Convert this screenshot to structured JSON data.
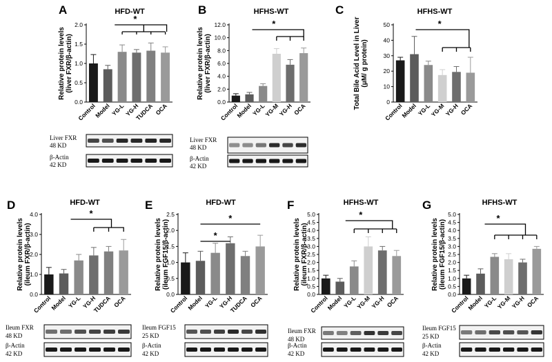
{
  "colors": {
    "control": "#1a1a1a",
    "model": "#5c5c5c",
    "yg_l": "#8a8a8a",
    "yg_m": "#cfcfcf",
    "yg_h": "#6e6e6e",
    "tudca": "#808080",
    "ocs": "#9a9a9a"
  },
  "significance_mark": "*",
  "chart_data": [
    {
      "panel": "A",
      "type": "bar",
      "title": "HFD-WT",
      "ylabel": [
        "Relative protein levels",
        "(liver FXR/β-actin)"
      ],
      "categories": [
        "Control",
        "Model",
        "YG-L",
        "YG-H",
        "TUDCA",
        "OCA"
      ],
      "values": [
        1.0,
        0.85,
        1.3,
        1.28,
        1.33,
        1.28
      ],
      "errors": [
        0.23,
        0.1,
        0.18,
        0.08,
        0.2,
        0.15
      ],
      "ylim": [
        0,
        2.0
      ],
      "yticks": [
        "0.0",
        "0.5",
        "1.0",
        "1.5",
        "2.0"
      ],
      "blot": [
        {
          "label": [
            "Liver FXR",
            "48 KD"
          ]
        },
        {
          "label": [
            "β-Actin",
            "42 KD"
          ]
        }
      ]
    },
    {
      "panel": "B",
      "type": "bar",
      "title": "HFHS-WT",
      "ylabel": [
        "Relative protein levels",
        "(liver FXR/β-actin)"
      ],
      "categories": [
        "Control",
        "Model",
        "YG-L",
        "YG-M",
        "YG-H",
        "OCA"
      ],
      "values": [
        1.0,
        1.2,
        2.5,
        7.5,
        5.8,
        7.6
      ],
      "errors": [
        0.3,
        0.3,
        0.35,
        0.8,
        0.8,
        0.8
      ],
      "ylim": [
        0,
        12.0
      ],
      "yticks": [
        "0.0",
        "2.0",
        "4.0",
        "6.0",
        "8.0",
        "10.0",
        "12.0"
      ],
      "blot": [
        {
          "label": [
            "Liver FXR",
            "48 KD"
          ]
        },
        {
          "label": [
            "β-Actin",
            "42 KD"
          ]
        }
      ]
    },
    {
      "panel": "C",
      "type": "bar",
      "title": "HFHS-WT",
      "ylabel": [
        "Total Bile Acid Level in Liver",
        "(μM/ g protein)"
      ],
      "categories": [
        "Control",
        "Model",
        "YG-L",
        "YG-M",
        "YG-H",
        "OCA"
      ],
      "values": [
        27,
        31,
        24,
        17.5,
        19.5,
        19
      ],
      "errors": [
        2,
        11.5,
        2.5,
        3.5,
        3.5,
        10
      ],
      "ylim": [
        0,
        50
      ],
      "yticks": [
        "0",
        "10",
        "20",
        "30",
        "40",
        "50"
      ],
      "blot": []
    },
    {
      "panel": "D",
      "type": "bar",
      "title": "HFD-WT",
      "ylabel": [
        "Relative protein levels",
        "(ileum FXR/β-actin)"
      ],
      "categories": [
        "Control",
        "Model",
        "YG-L",
        "YG-H",
        "TUDCA",
        "OCA"
      ],
      "values": [
        1.0,
        1.05,
        1.7,
        1.95,
        2.15,
        2.2
      ],
      "errors": [
        0.35,
        0.2,
        0.3,
        0.4,
        0.25,
        0.55
      ],
      "ylim": [
        0,
        4.0
      ],
      "yticks": [
        "0.0",
        "1.0",
        "2.0",
        "3.0",
        "4.0"
      ],
      "blot": [
        {
          "label": [
            "Ileum FXR",
            "48 KD"
          ]
        },
        {
          "label": [
            "β-Actin",
            "42 KD"
          ]
        }
      ]
    },
    {
      "panel": "E",
      "type": "bar",
      "title": "HFD-WT",
      "ylabel": [
        "Relative protein levels",
        "(ileum FGF15/β-actin)"
      ],
      "categories": [
        "Control",
        "Model",
        "YG-L",
        "YG-H",
        "TUDCA",
        "OCA"
      ],
      "values": [
        1.0,
        1.05,
        1.3,
        1.6,
        1.2,
        1.5
      ],
      "errors": [
        0.3,
        0.3,
        0.3,
        0.2,
        0.15,
        0.35
      ],
      "ylim": [
        0,
        2.5
      ],
      "yticks": [
        "0.0",
        "0.5",
        "1.0",
        "1.5",
        "2.0",
        "2.5"
      ],
      "blot": [
        {
          "label": [
            "Ileum FGF15",
            "25 KD"
          ]
        },
        {
          "label": [
            "β-Actin",
            "42 KD"
          ]
        }
      ]
    },
    {
      "panel": "F",
      "type": "bar",
      "title": "HFHS-WT",
      "ylabel": [
        "Relative protein levels",
        "(ileum FXR/β-actin)"
      ],
      "categories": [
        "Control",
        "Model",
        "YG-L",
        "YG-M",
        "YG-H",
        "OCA"
      ],
      "values": [
        1.0,
        0.8,
        1.75,
        3.0,
        2.75,
        2.4
      ],
      "errors": [
        0.2,
        0.2,
        0.35,
        0.6,
        0.25,
        0.35
      ],
      "ylim": [
        0,
        5.0
      ],
      "yticks": [
        "0.0",
        "0.5",
        "1.0",
        "1.5",
        "2.0",
        "2.5",
        "3.0",
        "3.5",
        "4.0",
        "4.5",
        "5.0"
      ],
      "blot": [
        {
          "label": [
            "Ileum FXR",
            "48 KD"
          ]
        },
        {
          "label": [
            "β-Actin",
            "42 KD"
          ]
        }
      ]
    },
    {
      "panel": "G",
      "type": "bar",
      "title": "HFHS-WT",
      "ylabel": [
        "Relative protein levels",
        "(ileum FGF15/β-actin)"
      ],
      "categories": [
        "Control",
        "Model",
        "YG-L",
        "YG-M",
        "YG-H",
        "OCA"
      ],
      "values": [
        1.0,
        1.3,
        2.35,
        2.2,
        2.0,
        2.85
      ],
      "errors": [
        0.2,
        0.3,
        0.2,
        0.35,
        0.2,
        0.15
      ],
      "ylim": [
        0,
        5.0
      ],
      "yticks": [
        "0.0",
        "0.5",
        "1.0",
        "1.5",
        "2.0",
        "2.5",
        "3.0",
        "3.5",
        "4.0",
        "4.5",
        "5.0"
      ],
      "blot": [
        {
          "label": [
            "Ileum FGF15",
            "25 KD"
          ]
        },
        {
          "label": [
            "β-Actin",
            "42 KD"
          ]
        }
      ]
    }
  ]
}
